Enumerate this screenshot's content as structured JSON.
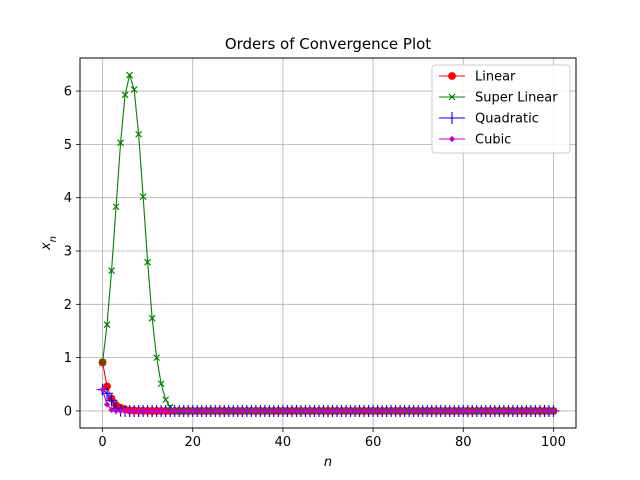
{
  "chart_data": {
    "type": "line",
    "title": "Orders of Convergence Plot",
    "xlabel": "n",
    "ylabel": "x_n",
    "xlim": [
      -5,
      105
    ],
    "ylim": [
      -0.32,
      6.62
    ],
    "xticks": [
      0,
      20,
      40,
      60,
      80,
      100
    ],
    "yticks": [
      0,
      1,
      2,
      3,
      4,
      5,
      6
    ],
    "grid": true,
    "legend_position": "top-right",
    "x_range": {
      "start": 0,
      "end": 100,
      "step": 1
    },
    "series": [
      {
        "name": "Linear",
        "color": "#ff0000",
        "marker": "circle",
        "x": [
          0,
          1,
          2,
          3,
          4,
          5,
          6,
          7,
          8,
          9,
          10
        ],
        "values": [
          0.91,
          0.46,
          0.23,
          0.11,
          0.06,
          0.03,
          0.01,
          0.007,
          0.004,
          0.002,
          0.001
        ],
        "tail_value": 0
      },
      {
        "name": "Super Linear",
        "color": "#008000",
        "marker": "x",
        "x": [
          0,
          1,
          2,
          3,
          4,
          5,
          6,
          7,
          8,
          9,
          10,
          11,
          12,
          13,
          14,
          15
        ],
        "values": [
          0.91,
          1.62,
          2.63,
          3.83,
          5.03,
          5.93,
          6.3,
          6.03,
          5.19,
          4.02,
          2.79,
          1.74,
          1.0,
          0.51,
          0.21,
          0.07
        ],
        "tail_value": 0
      },
      {
        "name": "Quadratic",
        "color": "#0000ff",
        "marker": "plus",
        "x": [
          0,
          1,
          2,
          3,
          4
        ],
        "values": [
          0.4,
          0.33,
          0.2,
          0.05,
          0.005
        ],
        "tail_value": 0
      },
      {
        "name": "Cubic",
        "color": "#c000c0",
        "marker": "diamond",
        "x": [
          0,
          1,
          2,
          3,
          4
        ],
        "values": [
          0.4,
          0.12,
          0.02,
          0.001,
          0.0
        ],
        "tail_value": 0
      }
    ]
  }
}
